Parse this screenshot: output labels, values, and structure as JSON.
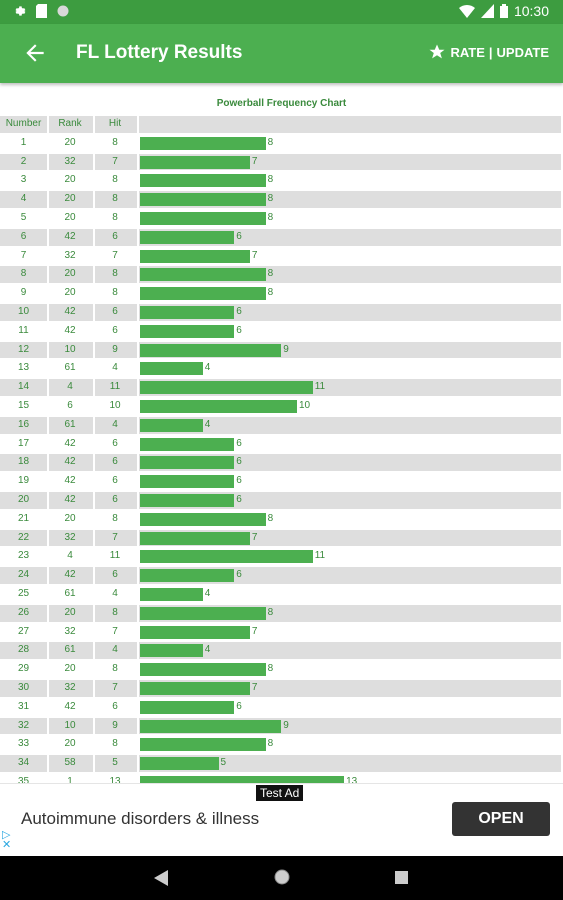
{
  "status_bar": {
    "time": "10:30"
  },
  "app_bar": {
    "title": "FL Lottery Results",
    "rate_label": "RATE",
    "divider": "|",
    "update_label": "UPDATE"
  },
  "chart_data": {
    "type": "table",
    "title": "Powerball Frequency Chart",
    "columns": [
      "Number",
      "Rank",
      "Hit"
    ],
    "rows": [
      {
        "number": "1",
        "rank": "20",
        "hit": 8
      },
      {
        "number": "2",
        "rank": "32",
        "hit": 7
      },
      {
        "number": "3",
        "rank": "20",
        "hit": 8
      },
      {
        "number": "4",
        "rank": "20",
        "hit": 8
      },
      {
        "number": "5",
        "rank": "20",
        "hit": 8
      },
      {
        "number": "6",
        "rank": "42",
        "hit": 6
      },
      {
        "number": "7",
        "rank": "32",
        "hit": 7
      },
      {
        "number": "8",
        "rank": "20",
        "hit": 8
      },
      {
        "number": "9",
        "rank": "20",
        "hit": 8
      },
      {
        "number": "10",
        "rank": "42",
        "hit": 6
      },
      {
        "number": "11",
        "rank": "42",
        "hit": 6
      },
      {
        "number": "12",
        "rank": "10",
        "hit": 9
      },
      {
        "number": "13",
        "rank": "61",
        "hit": 4
      },
      {
        "number": "14",
        "rank": "4",
        "hit": 11
      },
      {
        "number": "15",
        "rank": "6",
        "hit": 10
      },
      {
        "number": "16",
        "rank": "61",
        "hit": 4
      },
      {
        "number": "17",
        "rank": "42",
        "hit": 6
      },
      {
        "number": "18",
        "rank": "42",
        "hit": 6
      },
      {
        "number": "19",
        "rank": "42",
        "hit": 6
      },
      {
        "number": "20",
        "rank": "42",
        "hit": 6
      },
      {
        "number": "21",
        "rank": "20",
        "hit": 8
      },
      {
        "number": "22",
        "rank": "32",
        "hit": 7
      },
      {
        "number": "23",
        "rank": "4",
        "hit": 11
      },
      {
        "number": "24",
        "rank": "42",
        "hit": 6
      },
      {
        "number": "25",
        "rank": "61",
        "hit": 4
      },
      {
        "number": "26",
        "rank": "20",
        "hit": 8
      },
      {
        "number": "27",
        "rank": "32",
        "hit": 7
      },
      {
        "number": "28",
        "rank": "61",
        "hit": 4
      },
      {
        "number": "29",
        "rank": "20",
        "hit": 8
      },
      {
        "number": "30",
        "rank": "32",
        "hit": 7
      },
      {
        "number": "31",
        "rank": "42",
        "hit": 6
      },
      {
        "number": "32",
        "rank": "10",
        "hit": 9
      },
      {
        "number": "33",
        "rank": "20",
        "hit": 8
      },
      {
        "number": "34",
        "rank": "58",
        "hit": 5
      },
      {
        "number": "35",
        "rank": "1",
        "hit": 13
      }
    ],
    "bar_color": "#4caf50"
  },
  "ad": {
    "badge": "Test Ad",
    "text": "Autoimmune disorders & illness",
    "button": "OPEN"
  },
  "colors": {
    "status_bar": "#3d9c40",
    "app_bar": "#4caf50",
    "text_green": "#3a8a3c"
  }
}
